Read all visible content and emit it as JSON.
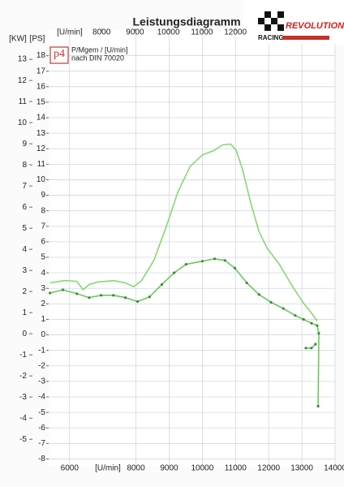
{
  "chart_data": {
    "type": "line",
    "title": "Leistungsdiagramm",
    "x_label": "[U/min]",
    "x2_label": "[U/min]",
    "y_label": "[KW]",
    "y2_label": "[PS]",
    "annotations": [
      "P/Mgem / [U/min]",
      "nach DIN 70020"
    ],
    "xlim": [
      5370,
      14000
    ],
    "xticks": [
      6000,
      8000,
      9000,
      10000,
      11000,
      12000,
      13000,
      14000
    ],
    "x2lim": [
      6420,
      14980
    ],
    "x2ticks": [
      8000,
      9000,
      10000,
      11000,
      12000
    ],
    "ylim": [
      -6.3,
      14.35
    ],
    "yticks": [
      13,
      12,
      11,
      10,
      9,
      8,
      7,
      6,
      5,
      4,
      3,
      2,
      1,
      0,
      -1,
      -2,
      -3,
      -4,
      -5
    ],
    "y2lim": [
      -8.5,
      19.6
    ],
    "y2ticks": [
      18,
      17,
      16,
      15,
      14,
      13,
      12,
      11,
      10,
      9,
      8,
      7,
      6,
      5,
      4,
      3,
      2,
      1,
      0,
      -1,
      -2,
      -3,
      -4,
      -5,
      -6,
      -7,
      -8
    ],
    "grid": true,
    "series": [
      {
        "color": "#86d96e",
        "axis": "y2",
        "markers": false,
        "x": [
          5410,
          5850,
          6220,
          6410,
          6590,
          6830,
          7320,
          7680,
          7930,
          8170,
          8540,
          8900,
          9270,
          9630,
          10000,
          10370,
          10610,
          10850,
          11020,
          11220,
          11460,
          11710,
          11950,
          12320,
          12680,
          13050,
          13290,
          13460
        ],
        "values": [
          3.35,
          3.5,
          3.45,
          2.9,
          3.25,
          3.4,
          3.5,
          3.35,
          3.1,
          3.5,
          4.8,
          6.9,
          9.25,
          10.85,
          11.6,
          11.9,
          12.25,
          12.3,
          11.9,
          10.6,
          8.5,
          6.65,
          5.6,
          4.55,
          3.25,
          2.05,
          1.4,
          0.9
        ]
      },
      {
        "color": "#6cc95a",
        "axis": "y2",
        "markers": true,
        "x": [
          5410,
          5800,
          6220,
          6590,
          6950,
          7320,
          7680,
          8050,
          8410,
          8780,
          9150,
          9510,
          10000,
          10370,
          10680,
          10980,
          11340,
          11710,
          12070,
          12440,
          12800,
          13050,
          13290,
          13460,
          13510,
          13490,
          null,
          13120,
          13290,
          13410
        ],
        "values": [
          2.7,
          2.9,
          2.65,
          2.4,
          2.55,
          2.55,
          2.4,
          2.15,
          2.45,
          3.25,
          4.0,
          4.55,
          4.75,
          4.9,
          4.8,
          4.3,
          3.35,
          2.6,
          2.1,
          1.7,
          1.25,
          1.0,
          0.75,
          0.6,
          0.1,
          -4.6,
          null,
          -0.85,
          -0.85,
          -0.6
        ]
      }
    ]
  },
  "branding": {
    "logo": "p4",
    "brand": "REVOLUTION",
    "brand_sub": "RACING"
  }
}
